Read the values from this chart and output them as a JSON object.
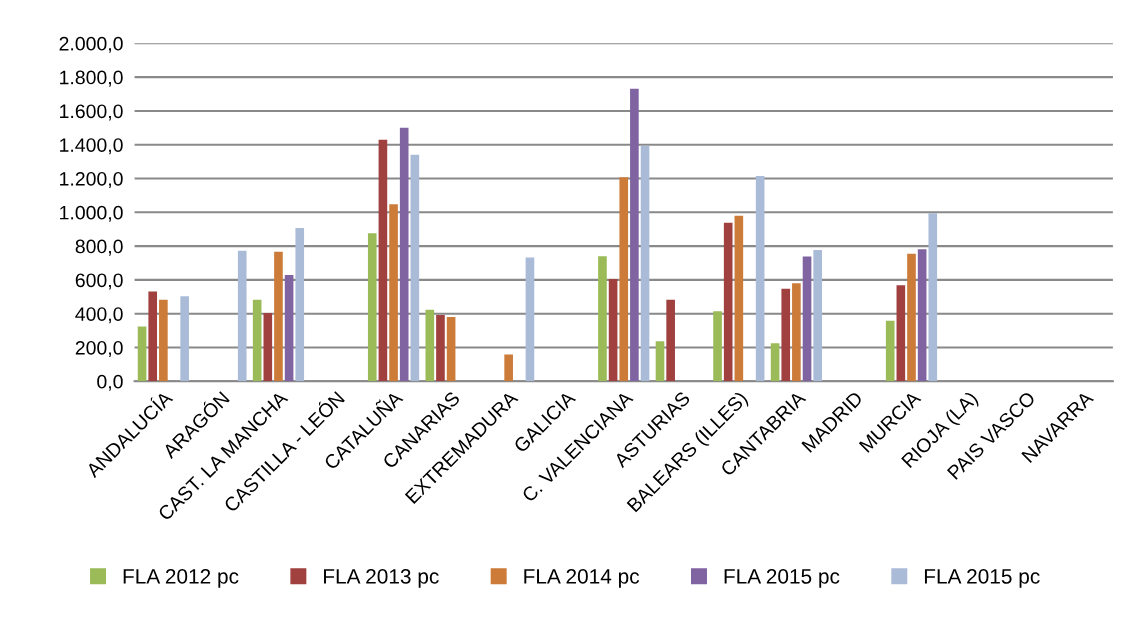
{
  "chart_data": {
    "type": "bar",
    "categories": [
      "ANDALUCÍA",
      "ARAGÓN",
      "CAST. LA MANCHA",
      "CASTILLA - LEÓN",
      "CATALUÑA",
      "CANARIAS",
      "EXTREMADURA",
      "GALICIA",
      "C. VALENCIANA",
      "ASTURIAS",
      "BALEARS (ILLES)",
      "CANTABRIA",
      "MADRID",
      "MURCIA",
      "RIOJA (LA)",
      "PAIS VASCO",
      "NAVARRA"
    ],
    "series": [
      {
        "name": "FLA 2012 pc",
        "color": "#9bbb59",
        "values": [
          325,
          null,
          483,
          null,
          876,
          424,
          null,
          null,
          740,
          237,
          414,
          225,
          null,
          359,
          null,
          null,
          null
        ]
      },
      {
        "name": "FLA 2013 pc",
        "color": "#a0403f",
        "values": [
          532,
          null,
          404,
          null,
          1430,
          392,
          null,
          null,
          605,
          483,
          939,
          548,
          null,
          568,
          null,
          null,
          null
        ]
      },
      {
        "name": "FLA 2014 pc",
        "color": "#cc7b38",
        "values": [
          483,
          null,
          767,
          null,
          1047,
          381,
          158,
          null,
          1207,
          null,
          980,
          580,
          null,
          755,
          null,
          null,
          null
        ]
      },
      {
        "name": "FLA 2015 pc",
        "color": "#8064a2",
        "values": [
          null,
          null,
          629,
          null,
          1501,
          null,
          null,
          null,
          1731,
          null,
          null,
          738,
          null,
          781,
          null,
          null,
          null
        ]
      },
      {
        "name": "FLA 2015 pc",
        "color": "#aabbd8",
        "values": [
          503,
          773,
          907,
          null,
          1341,
          null,
          732,
          null,
          1394,
          null,
          1215,
          777,
          null,
          994,
          null,
          null,
          null
        ]
      }
    ],
    "ylim": [
      0,
      2000
    ],
    "yticks": [
      {
        "value": 0,
        "label": "0,0"
      },
      {
        "value": 200,
        "label": "200,0"
      },
      {
        "value": 400,
        "label": "400,0"
      },
      {
        "value": 600,
        "label": "600,0"
      },
      {
        "value": 800,
        "label": "800,0"
      },
      {
        "value": 1000,
        "label": "1.000,0"
      },
      {
        "value": 1200,
        "label": "1.200,0"
      },
      {
        "value": 1400,
        "label": "1.400,0"
      },
      {
        "value": 1600,
        "label": "1.600,0"
      },
      {
        "value": 1800,
        "label": "1.800,0"
      },
      {
        "value": 2000,
        "label": "2.000,0"
      }
    ],
    "grid": "y",
    "legend": "bottom"
  }
}
